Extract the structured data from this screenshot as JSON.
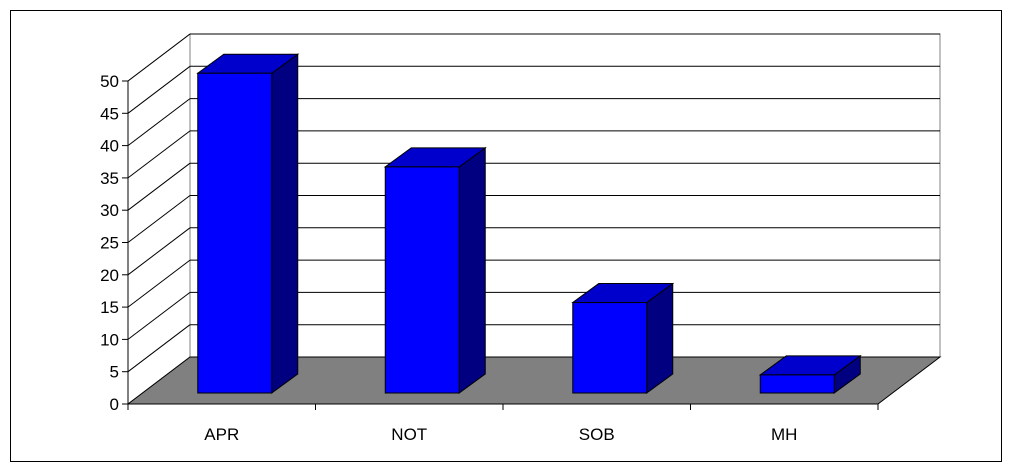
{
  "chart_data": {
    "type": "bar",
    "style": "3d-column",
    "categories": [
      "APR",
      "NOT",
      "SOB",
      "MH"
    ],
    "values": [
      49.5,
      35,
      14,
      2.8
    ],
    "title": "",
    "xlabel": "",
    "ylabel": "",
    "ylim": [
      0,
      50
    ],
    "yticks": [
      0,
      5,
      10,
      15,
      20,
      25,
      30,
      35,
      40,
      45,
      50
    ],
    "grid": true,
    "legend": "none",
    "colors": {
      "bar_front": "#0000ff",
      "bar_top": "#0000cc",
      "bar_side": "#000080",
      "floor": "#808080",
      "wall": "#ffffff",
      "grid": "#000000"
    }
  }
}
